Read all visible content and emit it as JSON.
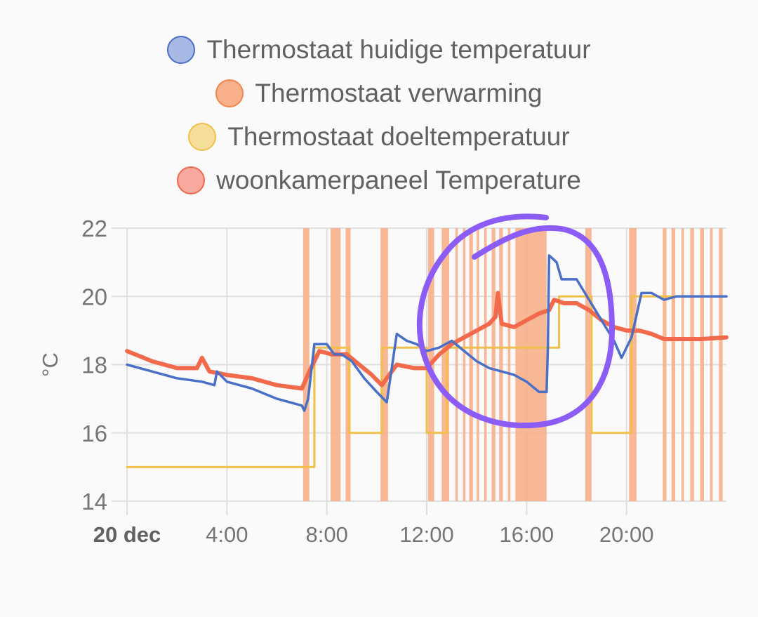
{
  "chart_data": {
    "type": "line",
    "ylabel": "°C",
    "ylim": [
      14,
      22
    ],
    "yticks": [
      14,
      16,
      18,
      20,
      22
    ],
    "xlim": [
      0,
      24
    ],
    "xticks": [
      {
        "value": 0,
        "label": "20 dec",
        "bold": true
      },
      {
        "value": 4,
        "label": "4:00",
        "bold": false
      },
      {
        "value": 8,
        "label": "8:00",
        "bold": false
      },
      {
        "value": 12,
        "label": "12:00",
        "bold": false
      },
      {
        "value": 16,
        "label": "16:00",
        "bold": false
      },
      {
        "value": 20,
        "label": "20:00",
        "bold": false
      }
    ],
    "grid": true,
    "legend_position": "top-center",
    "series": [
      {
        "name": "Thermostaat huidige temperatuur",
        "color": "#4a6fc7",
        "fill": "#a8b9e6",
        "points": [
          [
            0,
            18.0
          ],
          [
            1.0,
            17.8
          ],
          [
            2.0,
            17.6
          ],
          [
            3.0,
            17.5
          ],
          [
            3.5,
            17.4
          ],
          [
            3.6,
            17.8
          ],
          [
            4.0,
            17.5
          ],
          [
            5.0,
            17.3
          ],
          [
            6.0,
            17.0
          ],
          [
            7.0,
            16.8
          ],
          [
            7.1,
            16.65
          ],
          [
            7.25,
            17.0
          ],
          [
            7.5,
            18.6
          ],
          [
            8.0,
            18.6
          ],
          [
            8.3,
            18.3
          ],
          [
            8.6,
            18.3
          ],
          [
            9.0,
            18.1
          ],
          [
            9.5,
            17.6
          ],
          [
            10.0,
            17.2
          ],
          [
            10.4,
            16.9
          ],
          [
            10.6,
            17.9
          ],
          [
            10.8,
            18.9
          ],
          [
            11.2,
            18.7
          ],
          [
            11.6,
            18.6
          ],
          [
            12.0,
            18.4
          ],
          [
            12.5,
            18.5
          ],
          [
            13.0,
            18.7
          ],
          [
            13.5,
            18.4
          ],
          [
            14.0,
            18.1
          ],
          [
            14.5,
            17.9
          ],
          [
            15.0,
            17.8
          ],
          [
            15.5,
            17.7
          ],
          [
            16.0,
            17.5
          ],
          [
            16.5,
            17.2
          ],
          [
            16.8,
            17.2
          ],
          [
            16.85,
            18.5
          ],
          [
            16.9,
            21.2
          ],
          [
            17.2,
            21.0
          ],
          [
            17.4,
            20.5
          ],
          [
            18.0,
            20.5
          ],
          [
            18.5,
            19.9
          ],
          [
            19.0,
            19.3
          ],
          [
            19.5,
            18.7
          ],
          [
            19.8,
            18.2
          ],
          [
            20.2,
            18.8
          ],
          [
            20.6,
            20.1
          ],
          [
            21.0,
            20.1
          ],
          [
            21.5,
            19.9
          ],
          [
            22.0,
            20.0
          ],
          [
            23.0,
            20.0
          ],
          [
            24.0,
            20.0
          ]
        ]
      },
      {
        "name": "Thermostaat verwarming",
        "color": "#f2854c",
        "fill": "#f8b08a",
        "on_intervals": [
          [
            7.05,
            7.3
          ],
          [
            8.15,
            8.55
          ],
          [
            8.75,
            8.95
          ],
          [
            10.15,
            10.45
          ],
          [
            12.05,
            12.3
          ],
          [
            12.6,
            12.9
          ],
          [
            13.15,
            13.25
          ],
          [
            13.45,
            13.55
          ],
          [
            13.7,
            13.85
          ],
          [
            14.0,
            14.1
          ],
          [
            14.3,
            14.4
          ],
          [
            14.6,
            14.75
          ],
          [
            14.9,
            15.05
          ],
          [
            15.25,
            15.35
          ],
          [
            15.55,
            16.8
          ],
          [
            18.35,
            18.6
          ],
          [
            20.1,
            20.4
          ],
          [
            21.45,
            21.6
          ],
          [
            21.8,
            21.95
          ],
          [
            22.2,
            22.3
          ],
          [
            22.55,
            22.7
          ],
          [
            22.95,
            23.1
          ],
          [
            23.35,
            23.45
          ],
          [
            23.7,
            23.85
          ]
        ]
      },
      {
        "name": "Thermostaat doeltemperatuur",
        "color": "#f0c04a",
        "fill": "#f7dd9a",
        "points": [
          [
            0,
            15
          ],
          [
            7.5,
            15
          ],
          [
            7.5,
            18.5
          ],
          [
            8.9,
            18.5
          ],
          [
            8.9,
            16
          ],
          [
            10.2,
            16
          ],
          [
            10.2,
            18.5
          ],
          [
            12.0,
            18.5
          ],
          [
            12.0,
            16
          ],
          [
            12.8,
            16
          ],
          [
            12.8,
            18.5
          ],
          [
            17.3,
            18.5
          ],
          [
            17.3,
            20
          ],
          [
            18.6,
            20
          ],
          [
            18.6,
            16
          ],
          [
            20.2,
            16
          ],
          [
            20.2,
            20
          ],
          [
            24,
            20
          ]
        ]
      },
      {
        "name": "woonkamerpaneel Temperature",
        "color": "#f26a4b",
        "fill": "#f7a9a0",
        "points": [
          [
            0,
            18.4
          ],
          [
            1.0,
            18.1
          ],
          [
            2.0,
            17.9
          ],
          [
            2.8,
            17.9
          ],
          [
            3.0,
            18.2
          ],
          [
            3.3,
            17.8
          ],
          [
            4.0,
            17.7
          ],
          [
            5.0,
            17.6
          ],
          [
            6.0,
            17.4
          ],
          [
            7.0,
            17.3
          ],
          [
            7.3,
            17.8
          ],
          [
            7.7,
            18.4
          ],
          [
            8.2,
            18.3
          ],
          [
            8.8,
            18.3
          ],
          [
            9.3,
            18.0
          ],
          [
            9.8,
            17.7
          ],
          [
            10.2,
            17.4
          ],
          [
            10.8,
            18.0
          ],
          [
            11.5,
            17.9
          ],
          [
            12.0,
            17.9
          ],
          [
            12.5,
            18.3
          ],
          [
            13.0,
            18.6
          ],
          [
            13.5,
            18.8
          ],
          [
            14.0,
            19.0
          ],
          [
            14.5,
            19.2
          ],
          [
            14.75,
            19.4
          ],
          [
            14.85,
            20.1
          ],
          [
            15.0,
            19.2
          ],
          [
            15.5,
            19.1
          ],
          [
            16.0,
            19.3
          ],
          [
            16.5,
            19.5
          ],
          [
            16.9,
            19.6
          ],
          [
            17.1,
            19.9
          ],
          [
            17.5,
            19.8
          ],
          [
            18.0,
            19.8
          ],
          [
            18.5,
            19.6
          ],
          [
            19.0,
            19.3
          ],
          [
            19.5,
            19.1
          ],
          [
            20.0,
            19.0
          ],
          [
            20.5,
            19.0
          ],
          [
            21.0,
            18.9
          ],
          [
            21.5,
            18.75
          ],
          [
            22.0,
            18.75
          ],
          [
            23.0,
            18.75
          ],
          [
            24.0,
            18.8
          ]
        ]
      }
    ]
  },
  "annotation": {
    "color": "#8b5cf6"
  }
}
